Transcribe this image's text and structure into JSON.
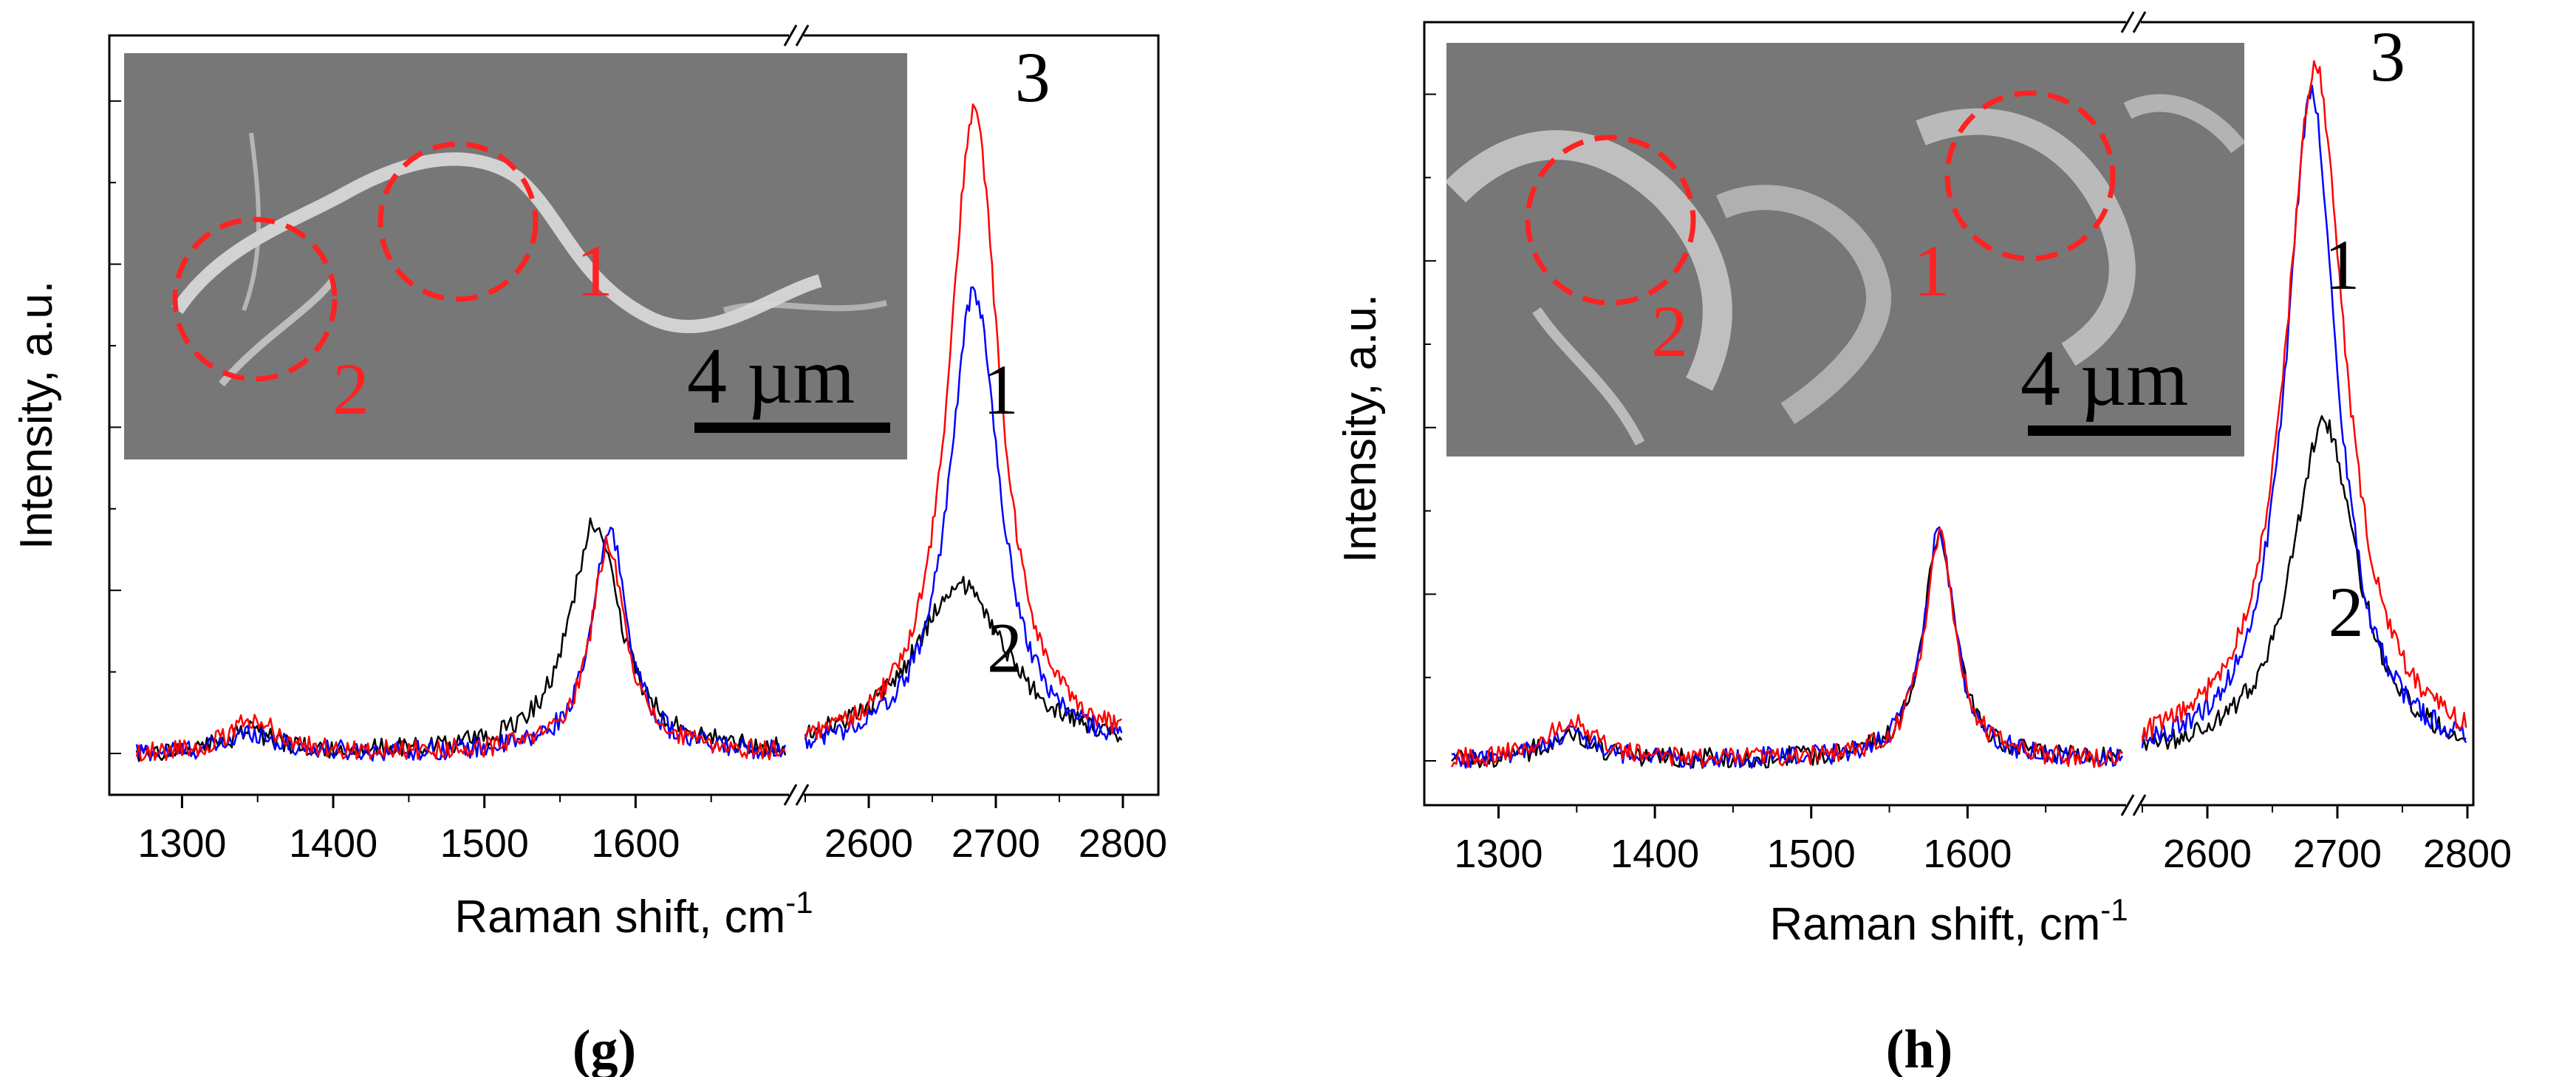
{
  "chart_data": [
    {
      "type": "line",
      "panel": "(g)",
      "xlabel": "Raman shift, cm",
      "xlabel_sup": "-1",
      "ylabel": "Intensity, a.u.",
      "x_ticks": [
        1300,
        1400,
        1500,
        1600,
        2600,
        2700,
        2800
      ],
      "x_break": "//",
      "segments": [
        [
          1270,
          1700
        ],
        [
          2550,
          2800
        ]
      ],
      "ylim": [
        0,
        1.0
      ],
      "series": [
        {
          "name": "1",
          "color": "#0000ff",
          "d_peak": [
            1347,
            0.03
          ],
          "g_peak": [
            1583,
            0.33
          ],
          "g_width": 14,
          "d2_peak": [
            2683,
            0.68
          ],
          "d2_width": 24
        },
        {
          "name": "2",
          "color": "#000000",
          "d_peak": [
            1345,
            0.03
          ],
          "g_peak": [
            1573,
            0.34
          ],
          "g_width": 20,
          "d2_peak": [
            2672,
            0.25
          ],
          "d2_width": 45
        },
        {
          "name": "3",
          "color": "#ff0000",
          "d_peak": [
            1348,
            0.05
          ],
          "g_peak": [
            1582,
            0.31
          ],
          "g_width": 14,
          "d2_peak": [
            2683,
            0.95
          ],
          "d2_width": 24
        }
      ],
      "curve_labels": [
        {
          "text": "3",
          "x": 2715,
          "y": 0.96
        },
        {
          "text": "1",
          "x": 2690,
          "y": 0.5
        },
        {
          "text": "2",
          "x": 2693,
          "y": 0.12
        }
      ],
      "inset": {
        "scale_bar": "4 µm",
        "circle_labels": [
          "1",
          "2"
        ]
      }
    },
    {
      "type": "line",
      "panel": "(h)",
      "xlabel": "Raman shift, cm",
      "xlabel_sup": "-1",
      "ylabel": "Intensity, a.u.",
      "x_ticks": [
        1300,
        1400,
        1500,
        1600,
        2600,
        2700,
        2800
      ],
      "x_break": "//",
      "segments": [
        [
          1270,
          1700
        ],
        [
          2550,
          2800
        ]
      ],
      "ylim": [
        0,
        1.0
      ],
      "series": [
        {
          "name": "1",
          "color": "#0000ff",
          "d_peak": [
            1345,
            0.04
          ],
          "g_peak": [
            1582,
            0.33
          ],
          "g_width": 12,
          "d2_peak": [
            2680,
            0.96
          ],
          "d2_width": 24
        },
        {
          "name": "2",
          "color": "#000000",
          "d_peak": [
            1345,
            0.04
          ],
          "g_peak": [
            1582,
            0.33
          ],
          "g_width": 12,
          "d2_peak": [
            2690,
            0.49
          ],
          "d2_width": 30
        },
        {
          "name": "3",
          "color": "#ff0000",
          "d_peak": [
            1346,
            0.06
          ],
          "g_peak": [
            1582,
            0.32
          ],
          "g_width": 12,
          "d2_peak": [
            2683,
            1.0
          ],
          "d2_width": 28
        }
      ],
      "curve_labels": [
        {
          "text": "3",
          "x": 2725,
          "y": 0.98
        },
        {
          "text": "1",
          "x": 2690,
          "y": 0.68
        },
        {
          "text": "2",
          "x": 2693,
          "y": 0.18
        }
      ],
      "inset": {
        "scale_bar": "4 µm",
        "circle_labels": [
          "1",
          "2"
        ]
      }
    }
  ]
}
